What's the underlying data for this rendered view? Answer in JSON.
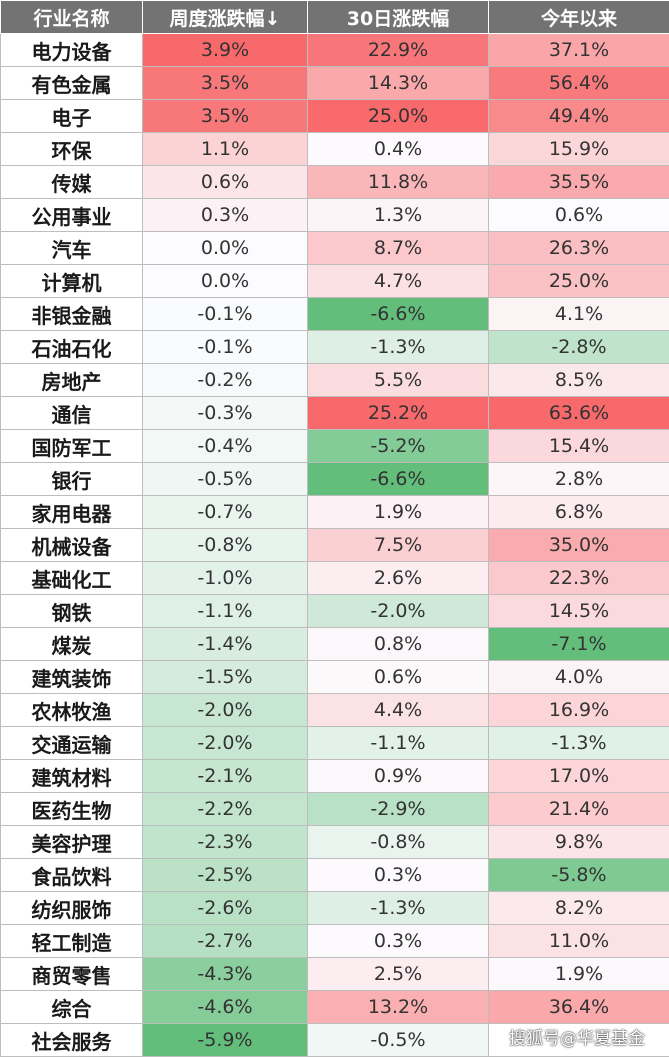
{
  "headers": [
    "行业名称",
    "周度涨跌幅↓",
    "30日涨跌幅",
    "今年以来"
  ],
  "rows": [
    [
      "电力设备",
      "3.9%",
      "22.9%",
      "37.1%"
    ],
    [
      "有色金属",
      "3.5%",
      "14.3%",
      "56.4%"
    ],
    [
      "电子",
      "3.5%",
      "25.0%",
      "49.4%"
    ],
    [
      "环保",
      "1.1%",
      "0.4%",
      "15.9%"
    ],
    [
      "传媒",
      "0.6%",
      "11.8%",
      "35.5%"
    ],
    [
      "公用事业",
      "0.3%",
      "1.3%",
      "0.6%"
    ],
    [
      "汽车",
      "0.0%",
      "8.7%",
      "26.3%"
    ],
    [
      "计算机",
      "0.0%",
      "4.7%",
      "25.0%"
    ],
    [
      "非银金融",
      "-0.1%",
      "-6.6%",
      "4.1%"
    ],
    [
      "石油石化",
      "-0.1%",
      "-1.3%",
      "-2.8%"
    ],
    [
      "房地产",
      "-0.2%",
      "5.5%",
      "8.5%"
    ],
    [
      "通信",
      "-0.3%",
      "25.2%",
      "63.6%"
    ],
    [
      "国防军工",
      "-0.4%",
      "-5.2%",
      "15.4%"
    ],
    [
      "银行",
      "-0.5%",
      "-6.6%",
      "2.8%"
    ],
    [
      "家用电器",
      "-0.7%",
      "1.9%",
      "6.8%"
    ],
    [
      "机械设备",
      "-0.8%",
      "7.5%",
      "35.0%"
    ],
    [
      "基础化工",
      "-1.0%",
      "2.6%",
      "22.3%"
    ],
    [
      "钢铁",
      "-1.1%",
      "-2.0%",
      "14.5%"
    ],
    [
      "煤炭",
      "-1.4%",
      "0.8%",
      "-7.1%"
    ],
    [
      "建筑装饰",
      "-1.5%",
      "0.6%",
      "4.0%"
    ],
    [
      "农林牧渔",
      "-2.0%",
      "4.4%",
      "16.9%"
    ],
    [
      "交通运输",
      "-2.0%",
      "-1.1%",
      "-1.3%"
    ],
    [
      "建筑材料",
      "-2.1%",
      "0.9%",
      "17.0%"
    ],
    [
      "医药生物",
      "-2.2%",
      "-2.9%",
      "21.4%"
    ],
    [
      "美容护理",
      "-2.3%",
      "-0.8%",
      "9.8%"
    ],
    [
      "食品饮料",
      "-2.5%",
      "0.3%",
      "-5.8%"
    ],
    [
      "纺织服饰",
      "-2.6%",
      "-1.3%",
      "8.2%"
    ],
    [
      "轻工制造",
      "-2.7%",
      "0.3%",
      "11.0%"
    ],
    [
      "商贸零售",
      "-4.3%",
      "2.5%",
      "1.9%"
    ],
    [
      "综合",
      "-4.6%",
      "13.2%",
      "36.4%"
    ],
    [
      "社会服务",
      "-5.9%",
      "-0.5%",
      ""
    ]
  ],
  "watermark": "搜狐号@华夏基金",
  "colors": {
    "header_bg": "#737373",
    "positive_max": "#f8696b",
    "negative_max": "#63be7b",
    "neutral": "#fcfcff"
  }
}
